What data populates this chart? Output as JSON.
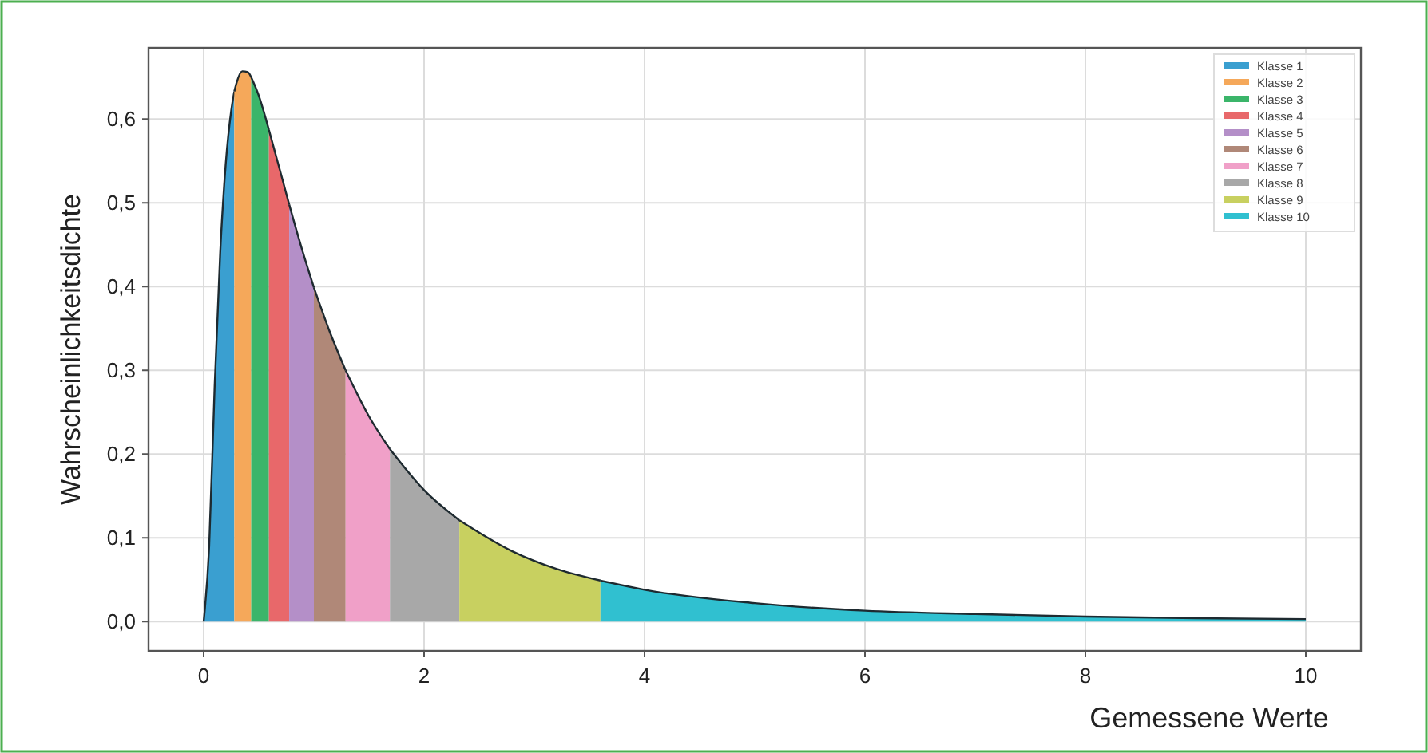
{
  "chart_data": {
    "type": "area",
    "xlabel": "Gemessene Werte",
    "ylabel": "Wahrscheinlichkeitsdichte",
    "xlim": [
      -0.5,
      10.5
    ],
    "ylim": [
      -0.035,
      0.685
    ],
    "xticks": [
      0,
      2,
      4,
      6,
      8,
      10
    ],
    "yticks": [
      {
        "value": 0,
        "label": "0,0"
      },
      {
        "value": 0.1,
        "label": "0,1"
      },
      {
        "value": 0.2,
        "label": "0,2"
      },
      {
        "value": 0.3,
        "label": "0,3"
      },
      {
        "value": 0.4,
        "label": "0,4"
      },
      {
        "value": 0.5,
        "label": "0,5"
      },
      {
        "value": 0.6,
        "label": "0,6"
      }
    ],
    "grid": true,
    "legend": "top right",
    "series": [
      {
        "name": "Klasse 1",
        "color": "#3a9fd0",
        "x": [
          0,
          0.05,
          0.1,
          0.15,
          0.2,
          0.25,
          0.278
        ],
        "values": [
          0,
          0.09,
          0.282,
          0.44,
          0.546,
          0.61,
          0.633
        ]
      },
      {
        "name": "Klasse 2",
        "color": "#f5a85a",
        "x": [
          0.278,
          0.3,
          0.35,
          0.4,
          0.431
        ],
        "values": [
          0.633,
          0.644,
          0.657,
          0.656,
          0.65
        ]
      },
      {
        "name": "Klasse 3",
        "color": "#3bb56a",
        "x": [
          0.431,
          0.5,
          0.592
        ],
        "values": [
          0.65,
          0.628,
          0.587
        ]
      },
      {
        "name": "Klasse 4",
        "color": "#e8686a",
        "x": [
          0.592,
          0.7,
          0.776
        ],
        "values": [
          0.587,
          0.535,
          0.498
        ]
      },
      {
        "name": "Klasse 5",
        "color": "#b48fc8",
        "x": [
          0.776,
          0.9,
          1.0
        ],
        "values": [
          0.498,
          0.441,
          0.399
        ]
      },
      {
        "name": "Klasse 6",
        "color": "#b08878",
        "x": [
          1.0,
          1.15,
          1.288
        ],
        "values": [
          0.399,
          0.344,
          0.3
        ]
      },
      {
        "name": "Klasse 7",
        "color": "#f0a0c8",
        "x": [
          1.288,
          1.5,
          1.69
        ],
        "values": [
          0.3,
          0.245,
          0.206
        ]
      },
      {
        "name": "Klasse 8",
        "color": "#a8a8a8",
        "x": [
          1.69,
          2.0,
          2.32
        ],
        "values": [
          0.206,
          0.157,
          0.121
        ]
      },
      {
        "name": "Klasse 9",
        "color": "#c8d060",
        "x": [
          2.32,
          2.8,
          3.2,
          3.6
        ],
        "values": [
          0.121,
          0.084,
          0.063,
          0.049
        ]
      },
      {
        "name": "Klasse 10",
        "color": "#30c0d0",
        "x": [
          3.6,
          4,
          5,
          6,
          7,
          8,
          9,
          10
        ],
        "values": [
          0.049,
          0.038,
          0.022,
          0.013,
          0.009,
          0.006,
          0.004,
          0.003
        ]
      }
    ]
  }
}
